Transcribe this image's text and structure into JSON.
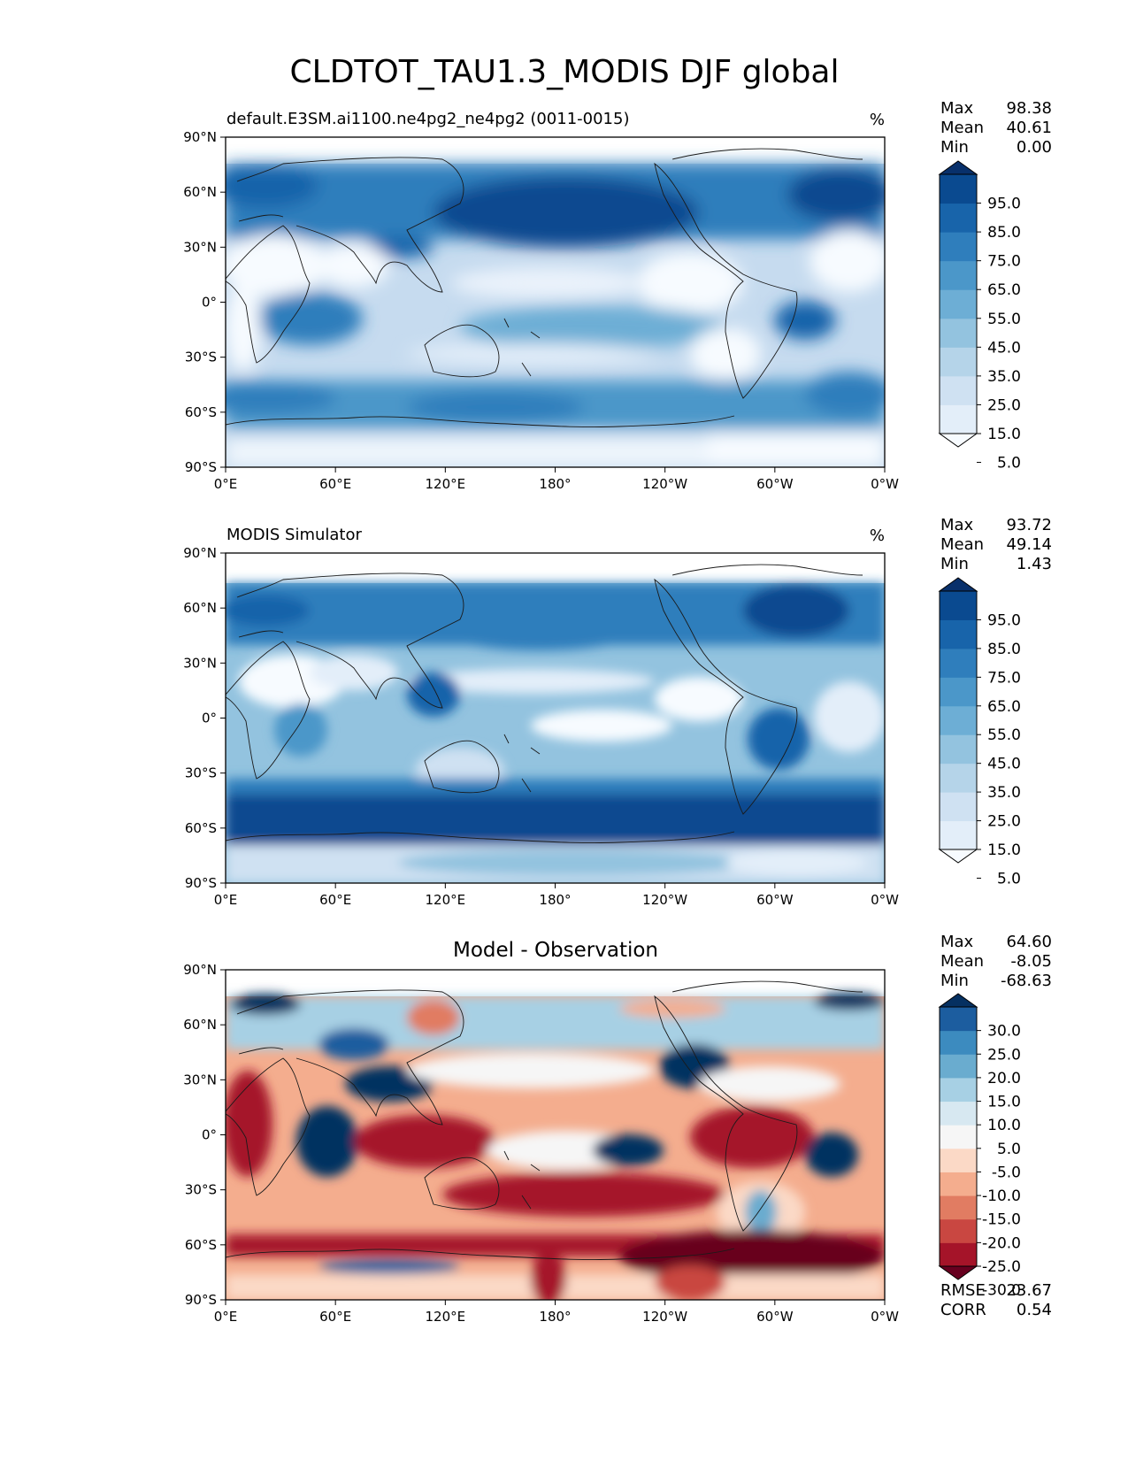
{
  "figure": {
    "title": "CLDTOT_TAU1.3_MODIS DJF global"
  },
  "axes": {
    "lat_labels": [
      "90°N",
      "60°N",
      "30°N",
      "0°",
      "30°S",
      "60°S",
      "90°S"
    ],
    "lon_labels": [
      "0°E",
      "60°E",
      "120°E",
      "180°",
      "120°W",
      "60°W",
      "0°W"
    ]
  },
  "panels": [
    {
      "id": "model",
      "left_title": "default.E3SM.ai1100.ne4pg2_ne4pg2 (0011-0015)",
      "center_title": "",
      "units": "%",
      "stats": [
        {
          "label": "Max",
          "value": "98.38"
        },
        {
          "label": "Mean",
          "value": "40.61"
        },
        {
          "label": "Min",
          "value": "0.00"
        }
      ],
      "colorbar_labels": [
        "95.0",
        "85.0",
        "75.0",
        "65.0",
        "55.0",
        "45.0",
        "35.0",
        "25.0",
        "15.0",
        "5.0"
      ],
      "colorbar_colors": [
        "#f7fbff",
        "#e3eef9",
        "#cfe1f2",
        "#b5d4e9",
        "#93c3df",
        "#6daed5",
        "#4b97c9",
        "#2f7ebc",
        "#1864aa",
        "#0a4a90",
        "#08306b"
      ],
      "footer": []
    },
    {
      "id": "obs",
      "left_title": "MODIS Simulator",
      "center_title": "",
      "units": "%",
      "stats": [
        {
          "label": "Max",
          "value": "93.72"
        },
        {
          "label": "Mean",
          "value": "49.14"
        },
        {
          "label": "Min",
          "value": "1.43"
        }
      ],
      "colorbar_labels": [
        "95.0",
        "85.0",
        "75.0",
        "65.0",
        "55.0",
        "45.0",
        "35.0",
        "25.0",
        "15.0",
        "5.0"
      ],
      "colorbar_colors": [
        "#f7fbff",
        "#e3eef9",
        "#cfe1f2",
        "#b5d4e9",
        "#93c3df",
        "#6daed5",
        "#4b97c9",
        "#2f7ebc",
        "#1864aa",
        "#0a4a90",
        "#08306b"
      ],
      "footer": []
    },
    {
      "id": "diff",
      "left_title": "",
      "center_title": "Model - Observation",
      "units": "",
      "stats": [
        {
          "label": "Max",
          "value": "64.60"
        },
        {
          "label": "Mean",
          "value": "-8.05"
        },
        {
          "label": "Min",
          "value": "-68.63"
        }
      ],
      "colorbar_labels": [
        "30.0",
        "25.0",
        "20.0",
        "15.0",
        "10.0",
        "5.0",
        "-5.0",
        "-10.0",
        "-15.0",
        "-20.0",
        "-25.0",
        "-30.0"
      ],
      "colorbar_colors": [
        "#67001f",
        "#a51429",
        "#c94741",
        "#e17c62",
        "#f4ad8e",
        "#fbd9c6",
        "#f6f6f6",
        "#d7e8f1",
        "#a7d0e4",
        "#6aaccf",
        "#3c8bbf",
        "#1c5d9f",
        "#053061"
      ],
      "footer": [
        {
          "label": "RMSE",
          "value": "23.67"
        },
        {
          "label": "CORR",
          "value": "0.54"
        }
      ]
    }
  ]
}
